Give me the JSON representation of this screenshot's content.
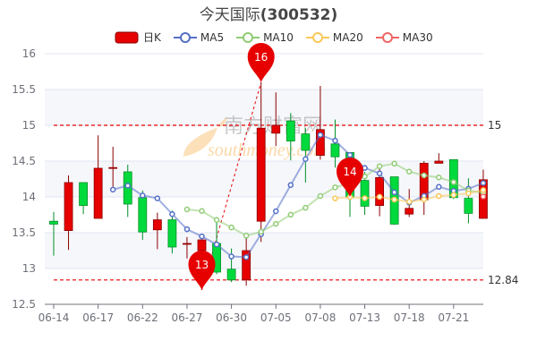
{
  "title": {
    "name": "今天国际",
    "code": "(300532)"
  },
  "legend": [
    {
      "label": "日K",
      "color": "#e60000",
      "kind": "candle"
    },
    {
      "label": "MA5",
      "color": "#5470c6",
      "kind": "line"
    },
    {
      "label": "MA10",
      "color": "#91cc75",
      "kind": "line"
    },
    {
      "label": "MA20",
      "color": "#fac858",
      "kind": "line"
    },
    {
      "label": "MA30",
      "color": "#ee6666",
      "kind": "line"
    }
  ],
  "watermark": "南方财富网 southmoney.com",
  "chart_data": {
    "type": "candlestick",
    "ylim": [
      12.5,
      16
    ],
    "yticks": [
      "12.5",
      "13",
      "13.5",
      "14",
      "14.5",
      "15",
      "15.5",
      "16"
    ],
    "xtick_labels": [
      "06-14",
      "06-17",
      "06-22",
      "06-27",
      "06-30",
      "07-05",
      "07-08",
      "07-13",
      "07-18",
      "07-21"
    ],
    "up_color": "#e60000",
    "down_color": "#00da3c",
    "dates": [
      "06-14",
      "06-15",
      "06-16",
      "06-17",
      "06-20",
      "06-21",
      "06-22",
      "06-23",
      "06-24",
      "06-27",
      "06-28",
      "06-29",
      "06-30",
      "07-01",
      "07-04",
      "07-05",
      "07-06",
      "07-07",
      "07-08",
      "07-11",
      "07-12",
      "07-13",
      "07-14",
      "07-15",
      "07-18",
      "07-19",
      "07-20",
      "07-21",
      "07-22",
      "07-25"
    ],
    "ohlc": [
      [
        13.66,
        13.62,
        13.79,
        13.18
      ],
      [
        13.53,
        14.2,
        14.3,
        13.26
      ],
      [
        14.2,
        13.88,
        14.2,
        13.76
      ],
      [
        13.7,
        14.4,
        14.86,
        13.7
      ],
      [
        14.4,
        14.41,
        14.7,
        14.14
      ],
      [
        14.35,
        13.9,
        14.45,
        13.72
      ],
      [
        13.99,
        13.51,
        14.09,
        13.4
      ],
      [
        13.54,
        13.68,
        13.78,
        13.27
      ],
      [
        13.68,
        13.3,
        13.81,
        13.21
      ],
      [
        13.34,
        13.35,
        13.44,
        13.14
      ],
      [
        13.25,
        13.4,
        13.4,
        12.7
      ],
      [
        13.35,
        12.95,
        13.72,
        12.92
      ],
      [
        12.99,
        12.84,
        13.28,
        12.81
      ],
      [
        12.84,
        13.25,
        13.43,
        12.76
      ],
      [
        13.66,
        14.96,
        15.6,
        13.37
      ],
      [
        14.89,
        15.0,
        15.46,
        14.71
      ],
      [
        15.06,
        14.78,
        15.17,
        14.51
      ],
      [
        14.88,
        14.65,
        14.96,
        14.2
      ],
      [
        14.58,
        14.94,
        15.55,
        14.52
      ],
      [
        14.74,
        14.56,
        15.08,
        14.41
      ],
      [
        14.62,
        14.0,
        14.62,
        13.72
      ],
      [
        14.23,
        13.87,
        14.35,
        13.75
      ],
      [
        13.88,
        14.27,
        14.41,
        13.73
      ],
      [
        14.28,
        13.62,
        14.28,
        13.61
      ],
      [
        13.76,
        13.84,
        14.11,
        13.72
      ],
      [
        13.96,
        14.47,
        14.5,
        13.75
      ],
      [
        14.47,
        14.5,
        14.61,
        14.47
      ],
      [
        14.52,
        13.99,
        14.52,
        13.97
      ],
      [
        13.98,
        13.77,
        14.26,
        13.63
      ],
      [
        13.7,
        14.24,
        14.38,
        13.7
      ]
    ],
    "mark_lines": [
      {
        "value": 15,
        "label": "15"
      },
      {
        "value": 12.84,
        "label": "12.84"
      }
    ],
    "mark_points": [
      {
        "label": "16",
        "value": 15.6,
        "date": "07-04"
      },
      {
        "label": "13",
        "value": 12.7,
        "date": "06-28"
      }
    ]
  }
}
